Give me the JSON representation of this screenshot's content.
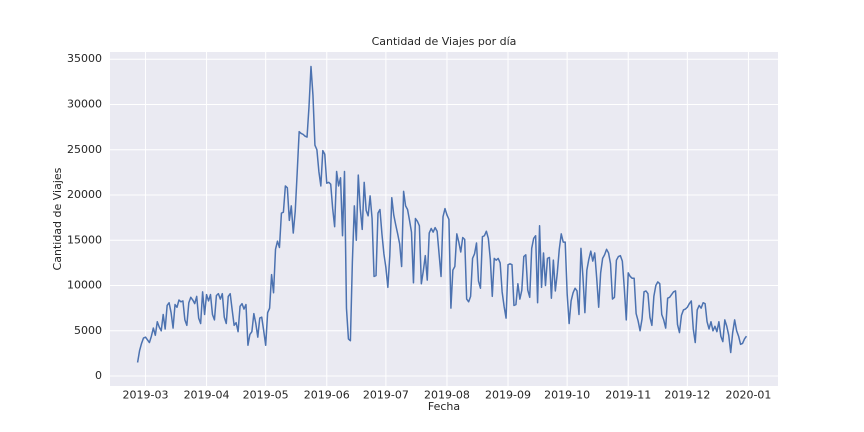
{
  "chart_data": {
    "type": "line",
    "title": "Cantidad de Viajes por día",
    "x_label": "Fecha",
    "y_label": "Cantidad de Viajes",
    "x": [
      55,
      56,
      57,
      58,
      59,
      60,
      61,
      62,
      63,
      64,
      65,
      66,
      67,
      68,
      69,
      70,
      71,
      72,
      73,
      74,
      75,
      76,
      77,
      78,
      79,
      80,
      81,
      82,
      83,
      84,
      85,
      86,
      87,
      88,
      89,
      90,
      91,
      92,
      93,
      94,
      95,
      96,
      97,
      98,
      99,
      100,
      101,
      102,
      103,
      104,
      105,
      106,
      107,
      108,
      109,
      110,
      111,
      112,
      113,
      114,
      115,
      116,
      117,
      118,
      119,
      120,
      121,
      122,
      123,
      124,
      125,
      126,
      127,
      128,
      129,
      130,
      131,
      132,
      133,
      134,
      135,
      136,
      137,
      138,
      139,
      140,
      141,
      142,
      143,
      144,
      145,
      146,
      147,
      148,
      149,
      150,
      151,
      152,
      153,
      154,
      155,
      156,
      157,
      158,
      159,
      160,
      161,
      162,
      163,
      164,
      165,
      166,
      167,
      168,
      169,
      170,
      171,
      172,
      173,
      174,
      175,
      176,
      177,
      178,
      179,
      180,
      181,
      182,
      183,
      184,
      185,
      186,
      187,
      188,
      189,
      190,
      191,
      192,
      193,
      194,
      195,
      196,
      197,
      198,
      199,
      200,
      201,
      202,
      203,
      204,
      205,
      206,
      207,
      208,
      209,
      210,
      211,
      212,
      213,
      214,
      215,
      216,
      217,
      218,
      219,
      220,
      221,
      222,
      223,
      224,
      225,
      226,
      227,
      228,
      229,
      230,
      231,
      232,
      233,
      234,
      235,
      236,
      237,
      238,
      239,
      240,
      241,
      242,
      243,
      244,
      245,
      246,
      247,
      248,
      249,
      250,
      251,
      252,
      253,
      254,
      255,
      256,
      257,
      258,
      259,
      260,
      261,
      262,
      263,
      264,
      265,
      266,
      267,
      268,
      269,
      270,
      271,
      272,
      273,
      274,
      275,
      276,
      277,
      278,
      279,
      280,
      281,
      282,
      283,
      284,
      285,
      286,
      287,
      288,
      289,
      290,
      291,
      292,
      293,
      294,
      295,
      296,
      297,
      298,
      299,
      300,
      301,
      302,
      303,
      304,
      305,
      306,
      307,
      308,
      309,
      310,
      311,
      312,
      313,
      314,
      315,
      316,
      317,
      318,
      319,
      320,
      321,
      322,
      323,
      324,
      325,
      326,
      327,
      328,
      329,
      330,
      331,
      332,
      333,
      334,
      335,
      336,
      337,
      338,
      339,
      340,
      341,
      342,
      343,
      344,
      345,
      346,
      347,
      348,
      349,
      350,
      351,
      352,
      353,
      354,
      355,
      356,
      357,
      358,
      359,
      360,
      361,
      362,
      363,
      364
    ],
    "series": [
      {
        "color": "#4c72b0",
        "values": [
          1500,
          2800,
          3600,
          4200,
          4300,
          4000,
          3700,
          4400,
          5300,
          4500,
          6000,
          5400,
          5000,
          6800,
          5200,
          7800,
          8100,
          7000,
          5300,
          7900,
          7600,
          8400,
          8200,
          8300,
          6200,
          5600,
          8100,
          8700,
          8400,
          8000,
          8800,
          6400,
          5800,
          9300,
          6800,
          9000,
          8300,
          9000,
          6800,
          6200,
          8900,
          9100,
          8500,
          9100,
          6500,
          5800,
          8800,
          9100,
          7300,
          5600,
          5900,
          4900,
          7700,
          8000,
          7400,
          7900,
          3400,
          4600,
          4900,
          6900,
          5800,
          4300,
          6400,
          6500,
          5000,
          3400,
          7000,
          7500,
          11200,
          9200,
          14000,
          14900,
          14200,
          18000,
          18100,
          21000,
          20800,
          17200,
          18800,
          15800,
          18200,
          22500,
          27000,
          26800,
          26700,
          26500,
          26400,
          29800,
          34200,
          31000,
          25500,
          25000,
          22600,
          21000,
          24900,
          24500,
          21300,
          21400,
          21200,
          18500,
          16500,
          22600,
          21000,
          21900,
          15500,
          22600,
          7500,
          4100,
          3900,
          12600,
          18800,
          15000,
          22200,
          18500,
          16200,
          21400,
          18300,
          17700,
          19900,
          17400,
          11000,
          11100,
          18000,
          18400,
          15700,
          13500,
          12000,
          9800,
          13300,
          19700,
          17800,
          16700,
          15700,
          14600,
          12100,
          20400,
          18800,
          18400,
          17200,
          15900,
          10300,
          17400,
          17100,
          16600,
          10200,
          11600,
          13300,
          10600,
          15800,
          16300,
          15900,
          16400,
          16000,
          13500,
          11000,
          17600,
          18500,
          17800,
          17300,
          7500,
          11700,
          12100,
          15700,
          14800,
          13700,
          15300,
          15100,
          8500,
          8200,
          8800,
          13000,
          13500,
          14700,
          10500,
          9700,
          15400,
          15500,
          16000,
          15200,
          12900,
          8800,
          13000,
          12800,
          13000,
          12500,
          9300,
          7700,
          6400,
          12300,
          12400,
          12300,
          7800,
          7900,
          10200,
          8500,
          9500,
          13200,
          13400,
          9500,
          8700,
          14100,
          15200,
          15500,
          8100,
          16600,
          9800,
          13600,
          10000,
          13000,
          13100,
          8600,
          12800,
          9400,
          11400,
          14000,
          15700,
          14800,
          14800,
          9100,
          5800,
          8300,
          9200,
          9700,
          9400,
          6800,
          14100,
          11000,
          7000,
          11700,
          12900,
          13800,
          12700,
          13600,
          10800,
          7600,
          11400,
          13000,
          13400,
          14000,
          13600,
          12400,
          8500,
          8700,
          12800,
          13200,
          13300,
          12700,
          9700,
          6200,
          11400,
          11000,
          10800,
          10800,
          6900,
          6100,
          5000,
          6300,
          9300,
          9400,
          9100,
          6500,
          5600,
          8800,
          10000,
          10400,
          10200,
          6800,
          6200,
          5300,
          8600,
          8700,
          9000,
          9300,
          9400,
          5700,
          4800,
          6700,
          7300,
          7400,
          7600,
          8000,
          8300,
          5200,
          3700,
          7300,
          7800,
          7500,
          8100,
          8000,
          6000,
          5200,
          6000,
          5000,
          5500,
          4900,
          6000,
          4400,
          3800,
          6200,
          5500,
          4500,
          2600,
          4800,
          6200,
          5000,
          4400,
          3500,
          3600,
          4100,
          4400
        ]
      }
    ],
    "xlim": [
      41,
      380
    ],
    "xticks": [
      {
        "value": 59,
        "label": "2019-03"
      },
      {
        "value": 90,
        "label": "2019-04"
      },
      {
        "value": 120,
        "label": "2019-05"
      },
      {
        "value": 151,
        "label": "2019-06"
      },
      {
        "value": 181,
        "label": "2019-07"
      },
      {
        "value": 212,
        "label": "2019-08"
      },
      {
        "value": 243,
        "label": "2019-09"
      },
      {
        "value": 273,
        "label": "2019-10"
      },
      {
        "value": 304,
        "label": "2019-11"
      },
      {
        "value": 334,
        "label": "2019-12"
      },
      {
        "value": 365,
        "label": "2020-01"
      }
    ],
    "ylim": [
      -1100,
      35800
    ],
    "yticks": [
      0,
      5000,
      10000,
      15000,
      20000,
      25000,
      30000,
      35000
    ],
    "grid": true
  }
}
